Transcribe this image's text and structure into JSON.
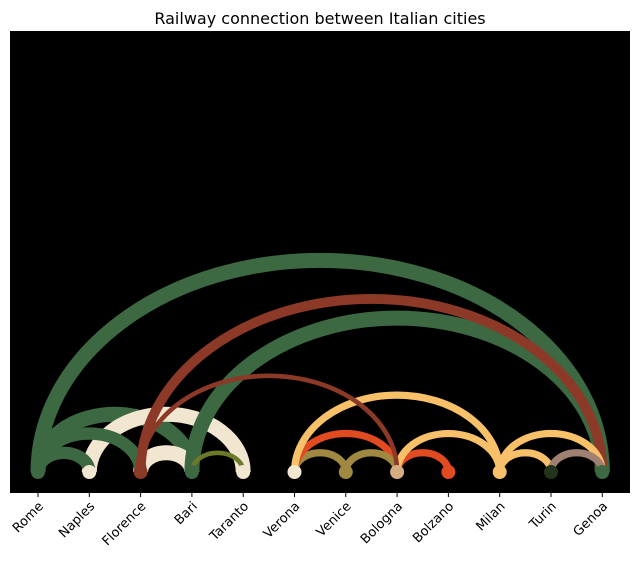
{
  "chart_data": {
    "type": "arc",
    "title": "Railway connection between Italian cities",
    "background": "#000000",
    "nodes": [
      {
        "name": "Rome",
        "color": "#3c6842"
      },
      {
        "name": "Naples",
        "color": "#f1e6d0"
      },
      {
        "name": "Florence",
        "color": "#8c3a27"
      },
      {
        "name": "Bari",
        "color": "#3c6842"
      },
      {
        "name": "Taranto",
        "color": "#f1e6d0"
      },
      {
        "name": "Verona",
        "color": "#f1e6d0"
      },
      {
        "name": "Venice",
        "color": "#a08840"
      },
      {
        "name": "Bologna",
        "color": "#d6ad82"
      },
      {
        "name": "Bolzano",
        "color": "#e24a20"
      },
      {
        "name": "Milan",
        "color": "#f7c069"
      },
      {
        "name": "Turin",
        "color": "#24331c"
      },
      {
        "name": "Genoa",
        "color": "#3c6842"
      }
    ],
    "edges": [
      {
        "source": "Rome",
        "target": "Genoa",
        "weight": 5,
        "color": "#3c6842"
      },
      {
        "source": "Rome",
        "target": "Naples",
        "weight": 4,
        "color": "#3c6842"
      },
      {
        "source": "Rome",
        "target": "Florence",
        "weight": 4,
        "color": "#3c6842"
      },
      {
        "source": "Rome",
        "target": "Bari",
        "weight": 5,
        "color": "#3c6842"
      },
      {
        "source": "Naples",
        "target": "Taranto",
        "weight": 5,
        "color": "#f1e6d0"
      },
      {
        "source": "Florence",
        "target": "Genoa",
        "weight": 3,
        "color": "#8c3a27"
      },
      {
        "source": "Florence",
        "target": "Bologna",
        "weight": 1,
        "color": "#8c3a27"
      },
      {
        "source": "Florence",
        "target": "Bari",
        "weight": 5,
        "color": "#f1e6d0"
      },
      {
        "source": "Bari",
        "target": "Taranto",
        "weight": 1,
        "color": "#6b7a2a"
      },
      {
        "source": "Verona",
        "target": "Venice",
        "weight": 2,
        "color": "#a08840"
      },
      {
        "source": "Verona",
        "target": "Bologna",
        "weight": 2,
        "color": "#e24a20"
      },
      {
        "source": "Verona",
        "target": "Milan",
        "weight": 2,
        "color": "#f7c069"
      },
      {
        "source": "Venice",
        "target": "Bologna",
        "weight": 2,
        "color": "#a08840"
      },
      {
        "source": "Bologna",
        "target": "Bolzano",
        "weight": 2,
        "color": "#e24a20"
      },
      {
        "source": "Bologna",
        "target": "Milan",
        "weight": 2,
        "color": "#f7c069"
      },
      {
        "source": "Milan",
        "target": "Turin",
        "weight": 2,
        "color": "#f7c069"
      },
      {
        "source": "Milan",
        "target": "Genoa",
        "weight": 2,
        "color": "#f7c069"
      },
      {
        "source": "Turin",
        "target": "Genoa",
        "weight": 2,
        "color": "#a08070"
      },
      {
        "source": "Bari",
        "target": "Genoa",
        "weight": 5,
        "color": "#3c6842"
      }
    ]
  }
}
